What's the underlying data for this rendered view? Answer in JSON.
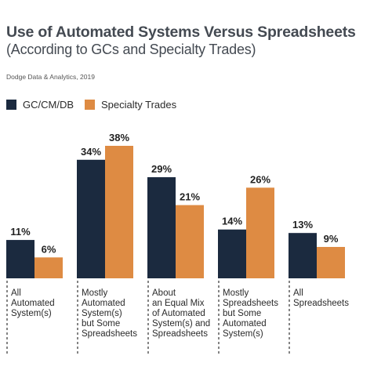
{
  "title": "Use of Automated Systems Versus Spreadsheets",
  "subtitle": "(According to GCs and Specialty Trades)",
  "source": "Dodge Data & Analytics, 2019",
  "colors": {
    "series1": "#1b2a3f",
    "series2": "#de8b43"
  },
  "legend": [
    {
      "name": "GC/CM/DB",
      "color": "#1b2a3f"
    },
    {
      "name": "Specialty Trades",
      "color": "#de8b43"
    }
  ],
  "chart_data": {
    "type": "bar",
    "title": "Use of Automated Systems Versus Spreadsheets",
    "subtitle": "(According to GCs and Specialty Trades)",
    "categories": [
      [
        "All",
        "Automated",
        "System(s)"
      ],
      [
        "Mostly",
        "Automated",
        "System(s)",
        "but Some",
        "Spreadsheets"
      ],
      [
        "About",
        "an Equal Mix",
        "of Automated",
        "System(s) and",
        "Spreadsheets"
      ],
      [
        "Mostly",
        "Spreadsheets",
        "but Some",
        "Automated",
        "System(s)"
      ],
      [
        "All",
        "Spreadsheets"
      ]
    ],
    "series": [
      {
        "name": "GC/CM/DB",
        "values": [
          11,
          34,
          29,
          14,
          13
        ],
        "labels": [
          "11%",
          "34%",
          "29%",
          "14%",
          "13%"
        ]
      },
      {
        "name": "Specialty Trades",
        "values": [
          6,
          38,
          21,
          26,
          9
        ],
        "labels": [
          "6%",
          "38%",
          "21%",
          "26%",
          "9%"
        ]
      }
    ],
    "ylim": [
      0,
      38
    ],
    "xlabel": "",
    "ylabel": "",
    "grid": false,
    "legend_position": "top-left"
  }
}
